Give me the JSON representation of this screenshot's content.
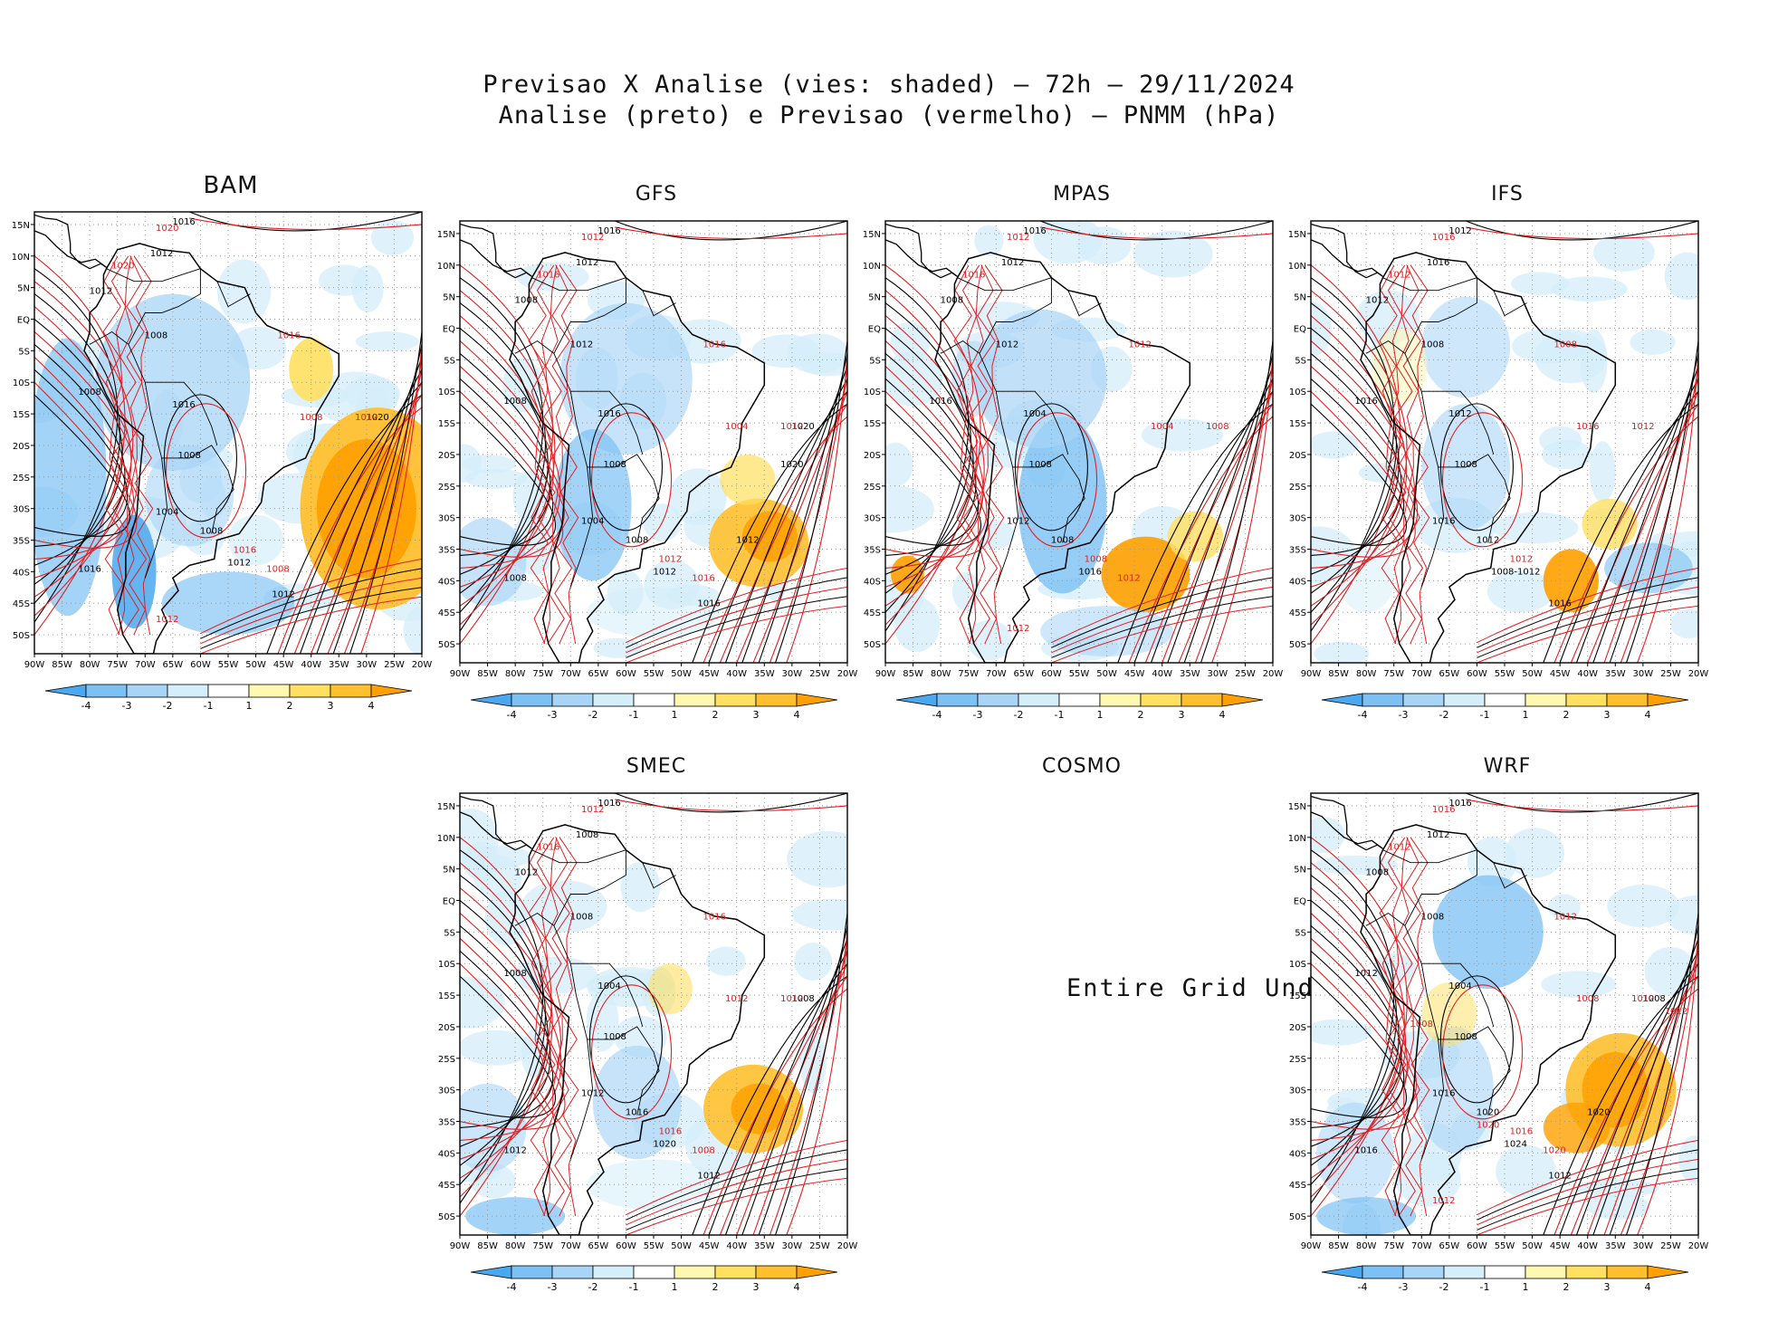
{
  "header": {
    "title_line1": "Previsao X Analise (vies: shaded) – 72h – 29/11/2024",
    "title_line2": "Analise (preto) e Previsao (vermelho) – PNMM (hPa)"
  },
  "axes": {
    "lat_labels": [
      "15N",
      "10N",
      "5N",
      "EQ",
      "5S",
      "10S",
      "15S",
      "20S",
      "25S",
      "30S",
      "35S",
      "40S",
      "45S",
      "50S"
    ],
    "lon_labels": [
      "90W",
      "85W",
      "80W",
      "75W",
      "70W",
      "65W",
      "60W",
      "55W",
      "50W",
      "45W",
      "40W",
      "35W",
      "30W",
      "25W",
      "20W"
    ]
  },
  "colorbar": {
    "ticks": [
      "-4",
      "-3",
      "-2",
      "-1",
      "1",
      "2",
      "3",
      "4"
    ],
    "colors": [
      "#4aa8f0",
      "#7cc0f4",
      "#a8d4f6",
      "#d4eefa",
      "#ffffff",
      "#fff8b0",
      "#ffe060",
      "#ffc030",
      "#ffa000"
    ]
  },
  "contour_colors": {
    "analysis": "#000000",
    "forecast": "#e02020"
  },
  "panels": [
    {
      "name": "BAM",
      "undefined": false,
      "labels_black": [
        "1016",
        "1012",
        "1012",
        "1008",
        "1008",
        "1016",
        "1008",
        "1004",
        "1008",
        "1012",
        "1012",
        "1020",
        "1016"
      ],
      "labels_red": [
        "1020",
        "1020",
        "1016",
        "1008",
        "1012",
        "1016",
        "1008",
        "1012"
      ]
    },
    {
      "name": "GFS",
      "undefined": false,
      "labels_black": [
        "1016",
        "1012",
        "1008",
        "1012",
        "1008",
        "1016",
        "1008",
        "1004",
        "1008",
        "1012",
        "1016",
        "1020",
        "1008",
        "1012",
        "1020"
      ],
      "labels_red": [
        "1012",
        "1016",
        "1016",
        "1004",
        "1012",
        "1012",
        "1016"
      ]
    },
    {
      "name": "MPAS",
      "undefined": false,
      "labels_black": [
        "1016",
        "1012",
        "1008",
        "1012",
        "1016",
        "1004",
        "1008",
        "1012",
        "1008",
        "1016"
      ],
      "labels_red": [
        "1012",
        "1016",
        "1012",
        "1004",
        "1008",
        "1008",
        "1012",
        "1012"
      ]
    },
    {
      "name": "IFS",
      "undefined": false,
      "labels_black": [
        "1012",
        "1016",
        "1012",
        "1008",
        "1016",
        "1012",
        "1008",
        "1016",
        "1012",
        "1008-1012",
        "1016"
      ],
      "labels_red": [
        "1016",
        "1012",
        "1008",
        "1016",
        "1012",
        "1012"
      ]
    },
    {
      "name": "SMEC",
      "undefined": false,
      "labels_black": [
        "1016",
        "1008",
        "1012",
        "1008",
        "1008",
        "1004",
        "1008",
        "1012",
        "1016",
        "1020",
        "1012",
        "1008",
        "1012"
      ],
      "labels_red": [
        "1012",
        "1016",
        "1016",
        "1012",
        "1012",
        "1016",
        "1008"
      ]
    },
    {
      "name": "COSMO",
      "undefined": true,
      "undefined_text": "Entire Grid Undef",
      "labels_black": [],
      "labels_red": []
    },
    {
      "name": "WRF",
      "undefined": false,
      "labels_black": [
        "1016",
        "1012",
        "1008",
        "1008",
        "1012",
        "1004",
        "1008",
        "1016",
        "1020",
        "1024",
        "1012",
        "1008",
        "1016",
        "1020"
      ],
      "labels_red": [
        "1016",
        "1012",
        "1012",
        "1008",
        "1012",
        "1016",
        "1020",
        "1012",
        "1012",
        "1008",
        "1020"
      ]
    }
  ]
}
